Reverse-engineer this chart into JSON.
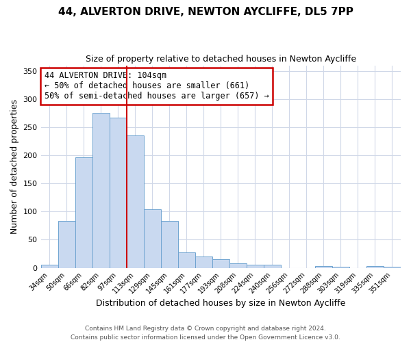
{
  "title": "44, ALVERTON DRIVE, NEWTON AYCLIFFE, DL5 7PP",
  "subtitle": "Size of property relative to detached houses in Newton Aycliffe",
  "xlabel": "Distribution of detached houses by size in Newton Aycliffe",
  "ylabel": "Number of detached properties",
  "bar_labels": [
    "34sqm",
    "50sqm",
    "66sqm",
    "82sqm",
    "97sqm",
    "113sqm",
    "129sqm",
    "145sqm",
    "161sqm",
    "177sqm",
    "193sqm",
    "208sqm",
    "224sqm",
    "240sqm",
    "256sqm",
    "272sqm",
    "288sqm",
    "303sqm",
    "319sqm",
    "335sqm",
    "351sqm"
  ],
  "bar_heights": [
    6,
    84,
    196,
    276,
    267,
    235,
    104,
    84,
    27,
    20,
    15,
    8,
    6,
    5,
    0,
    0,
    3,
    2,
    0,
    3,
    2
  ],
  "bar_color": "#c9d9f0",
  "bar_edge_color": "#6ea3d0",
  "vline_x_idx": 4,
  "vline_color": "#cc0000",
  "annotation_text": "44 ALVERTON DRIVE: 104sqm\n← 50% of detached houses are smaller (661)\n50% of semi-detached houses are larger (657) →",
  "annotation_box_color": "#ffffff",
  "annotation_box_edge_color": "#cc0000",
  "ylim": [
    0,
    360
  ],
  "yticks": [
    0,
    50,
    100,
    150,
    200,
    250,
    300,
    350
  ],
  "footer_line1": "Contains HM Land Registry data © Crown copyright and database right 2024.",
  "footer_line2": "Contains public sector information licensed under the Open Government Licence v3.0.",
  "background_color": "#ffffff",
  "grid_color": "#d0d8e8"
}
